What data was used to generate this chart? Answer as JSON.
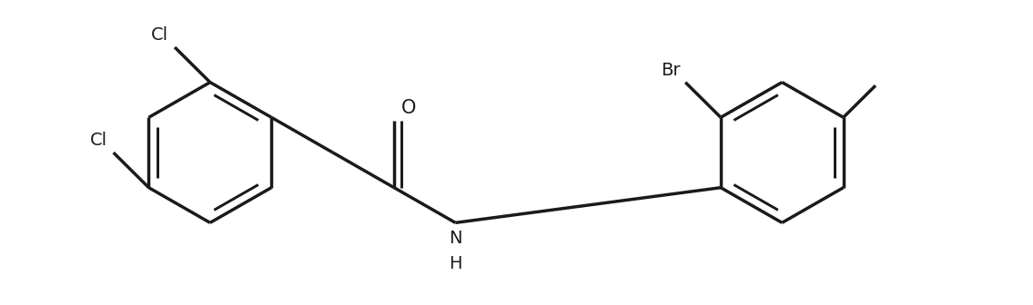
{
  "bg": "#ffffff",
  "lc": "#1a1a1a",
  "lw": 2.5,
  "fs": 14,
  "r": 0.78,
  "dbo": 0.1,
  "r1cx": 2.3,
  "r1cy": 1.68,
  "r2cx": 8.6,
  "r2cy": 1.68,
  "xlim": [
    0,
    11.35
  ],
  "ylim": [
    0,
    3.36
  ]
}
